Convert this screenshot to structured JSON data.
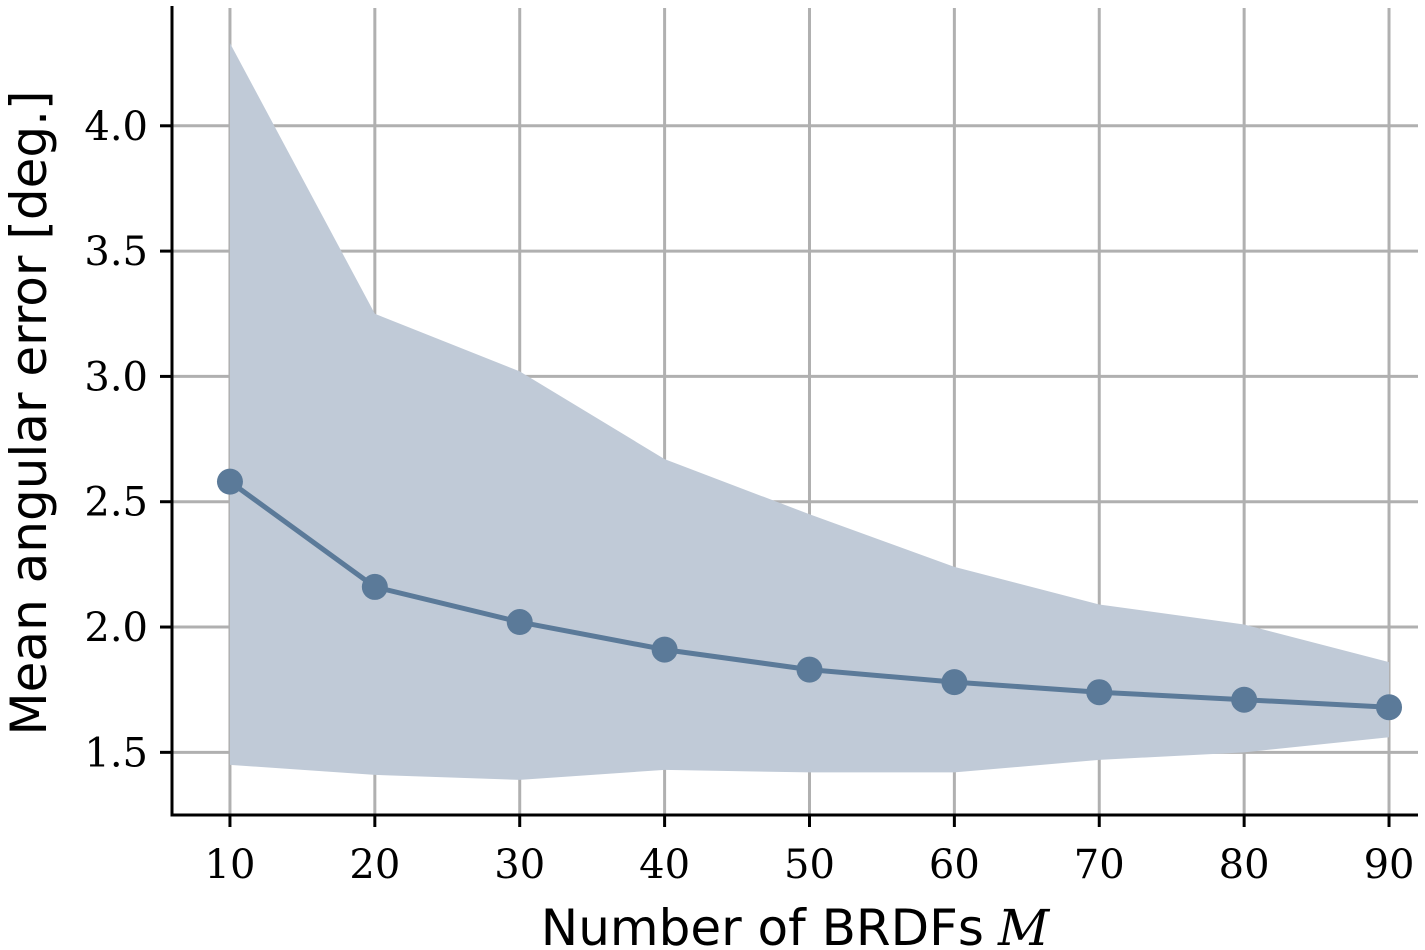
{
  "chart_data": {
    "type": "line",
    "title": "",
    "xlabel": "Number of BRDFs",
    "xlabel_symbol": "M",
    "ylabel": "Mean angular error [deg.]",
    "x": [
      10,
      20,
      30,
      40,
      50,
      60,
      70,
      80,
      90
    ],
    "xticks": [
      "10",
      "20",
      "30",
      "40",
      "50",
      "60",
      "70",
      "80",
      "90"
    ],
    "yticks": [
      "1.5",
      "2.0",
      "2.5",
      "3.0",
      "3.5",
      "4.0"
    ],
    "ytick_values": [
      1.5,
      2.0,
      2.5,
      3.0,
      3.5,
      4.0
    ],
    "xlim": [
      6,
      92
    ],
    "ylim": [
      1.25,
      4.47
    ],
    "grid": true,
    "series": [
      {
        "values": [
          2.58,
          2.16,
          2.02,
          1.91,
          1.83,
          1.78,
          1.74,
          1.71,
          1.68
        ],
        "color": "#5b7a99",
        "band_upper": [
          4.33,
          3.25,
          3.02,
          2.67,
          2.45,
          2.24,
          2.09,
          2.01,
          1.86
        ],
        "band_lower": [
          1.45,
          1.41,
          1.39,
          1.43,
          1.42,
          1.42,
          1.47,
          1.5,
          1.56
        ],
        "band_color": "#c0cad7"
      }
    ]
  }
}
